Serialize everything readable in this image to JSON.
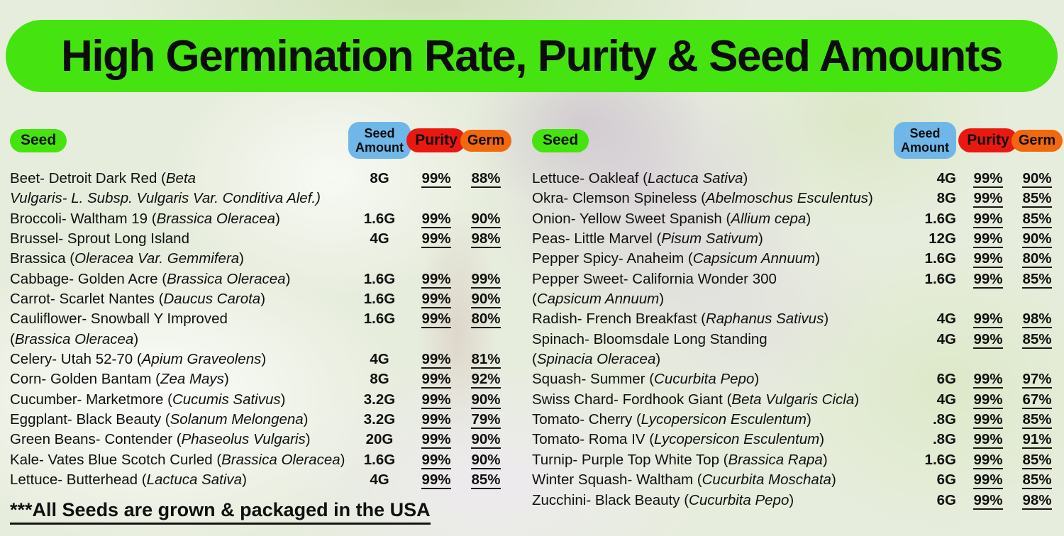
{
  "colors": {
    "banner_green": "#45e410",
    "amount_blue": "#6fb7e8",
    "purity_red": "#ea190f",
    "germ_orange": "#f1680f"
  },
  "header": {
    "seed": "Seed",
    "amount": [
      "Seed",
      "Amount"
    ],
    "purity": "Purity",
    "germ": "Germ"
  },
  "chart_data": {
    "type": "table",
    "title": "High Germination Rate, Purity & Seed Amounts",
    "footnote": "***All Seeds are grown & packaged in the USA",
    "columns": [
      "Seed",
      "Seed Amount",
      "Purity",
      "Germ"
    ],
    "tables": [
      {
        "side": "left",
        "rows": [
          {
            "seed": "Beet- Detroit Dark Red (*Beta*",
            "amount": "8G",
            "purity": "99%",
            "germ": "88%"
          },
          {
            "seed": "*Vulgaris- L. Subsp. Vulgaris Var. Conditiva Alef.)*"
          },
          {
            "seed": "Broccoli- Waltham 19 (*Brassica Oleracea*)",
            "amount": "1.6G",
            "purity": "99%",
            "germ": "90%"
          },
          {
            "seed": "Brussel- Sprout Long Island",
            "amount": "4G",
            "purity": "99%",
            "germ": "98%"
          },
          {
            "seed": "Brassica (*Oleracea Var. Gemmifera*)"
          },
          {
            "seed": "Cabbage- Golden Acre (*Brassica Oleracea*)",
            "amount": "1.6G",
            "purity": "99%",
            "germ": "99%"
          },
          {
            "seed": "Carrot- Scarlet Nantes (*Daucus Carota*)",
            "amount": "1.6G",
            "purity": "99%",
            "germ": "90%"
          },
          {
            "seed": "Cauliflower- Snowball Y Improved",
            "amount": "1.6G",
            "purity": "99%",
            "germ": "80%"
          },
          {
            "seed": "(*Brassica Oleracea*)"
          },
          {
            "seed": "Celery- Utah 52-70 (*Apium Graveolens*)",
            "amount": "4G",
            "purity": "99%",
            "germ": "81%"
          },
          {
            "seed": "Corn- Golden Bantam (*Zea Mays*)",
            "amount": "8G",
            "purity": "99%",
            "germ": "92%"
          },
          {
            "seed": "Cucumber- Marketmore (*Cucumis Sativus*)",
            "amount": "3.2G",
            "purity": "99%",
            "germ": "90%"
          },
          {
            "seed": "Eggplant- Black Beauty (*Solanum Melongena*)",
            "amount": "3.2G",
            "purity": "99%",
            "germ": "79%"
          },
          {
            "seed": "Green Beans- Contender (*Phaseolus Vulgaris*)",
            "amount": "20G",
            "purity": "99%",
            "germ": "90%"
          },
          {
            "seed": "Kale- Vates Blue Scotch Curled (*Brassica Oleracea*)",
            "amount": "1.6G",
            "purity": "99%",
            "germ": "90%"
          },
          {
            "seed": "Lettuce- Butterhead (*Lactuca Sativa*)",
            "amount": "4G",
            "purity": "99%",
            "germ": "85%"
          }
        ]
      },
      {
        "side": "right",
        "rows": [
          {
            "seed": "Lettuce- Oakleaf (*Lactuca Sativa*)",
            "amount": "4G",
            "purity": "99%",
            "germ": "90%"
          },
          {
            "seed": "Okra- Clemson Spineless (*Abelmoschus Esculentus*)",
            "amount": "8G",
            "purity": "99%",
            "germ": "85%"
          },
          {
            "seed": "Onion- Yellow Sweet Spanish (*Allium cepa*)",
            "amount": "1.6G",
            "purity": "99%",
            "germ": "85%"
          },
          {
            "seed": "Peas- Little Marvel (*Pisum Sativum*)",
            "amount": "12G",
            "purity": "99%",
            "germ": "90%"
          },
          {
            "seed": "Pepper Spicy- Anaheim (*Capsicum Annuum*)",
            "amount": "1.6G",
            "purity": "99%",
            "germ": "80%"
          },
          {
            "seed": "Pepper Sweet- California Wonder 300",
            "amount": "1.6G",
            "purity": "99%",
            "germ": "85%"
          },
          {
            "seed": "(*Capsicum Annuum*)"
          },
          {
            "seed": "Radish- French Breakfast (*Raphanus Sativus*)",
            "amount": "4G",
            "purity": "99%",
            "germ": "98%"
          },
          {
            "seed": "Spinach- Bloomsdale Long Standing",
            "amount": "4G",
            "purity": "99%",
            "germ": "85%"
          },
          {
            "seed": "(*Spinacia Oleracea*)"
          },
          {
            "seed": "Squash- Summer (*Cucurbita Pepo*)",
            "amount": "6G",
            "purity": "99%",
            "germ": "97%"
          },
          {
            "seed": "Swiss Chard- Fordhook Giant (*Beta Vulgaris Cicla*)",
            "amount": "4G",
            "purity": "99%",
            "germ": "67%"
          },
          {
            "seed": "Tomato- Cherry (*Lycopersicon Esculentum*)",
            "amount": ".8G",
            "purity": "99%",
            "germ": "85%"
          },
          {
            "seed": "Tomato- Roma IV (*Lycopersicon Esculentum*)",
            "amount": ".8G",
            "purity": "99%",
            "germ": "91%"
          },
          {
            "seed": "Turnip- Purple Top White Top (*Brassica Rapa*)",
            "amount": "1.6G",
            "purity": "99%",
            "germ": "85%"
          },
          {
            "seed": "Winter Squash- Waltham (*Cucurbita Moschata*)",
            "amount": "6G",
            "purity": "99%",
            "germ": "85%"
          },
          {
            "seed": "Zucchini- Black Beauty (*Cucurbita Pepo*)",
            "amount": "6G",
            "purity": "99%",
            "germ": "98%"
          }
        ]
      }
    ]
  }
}
